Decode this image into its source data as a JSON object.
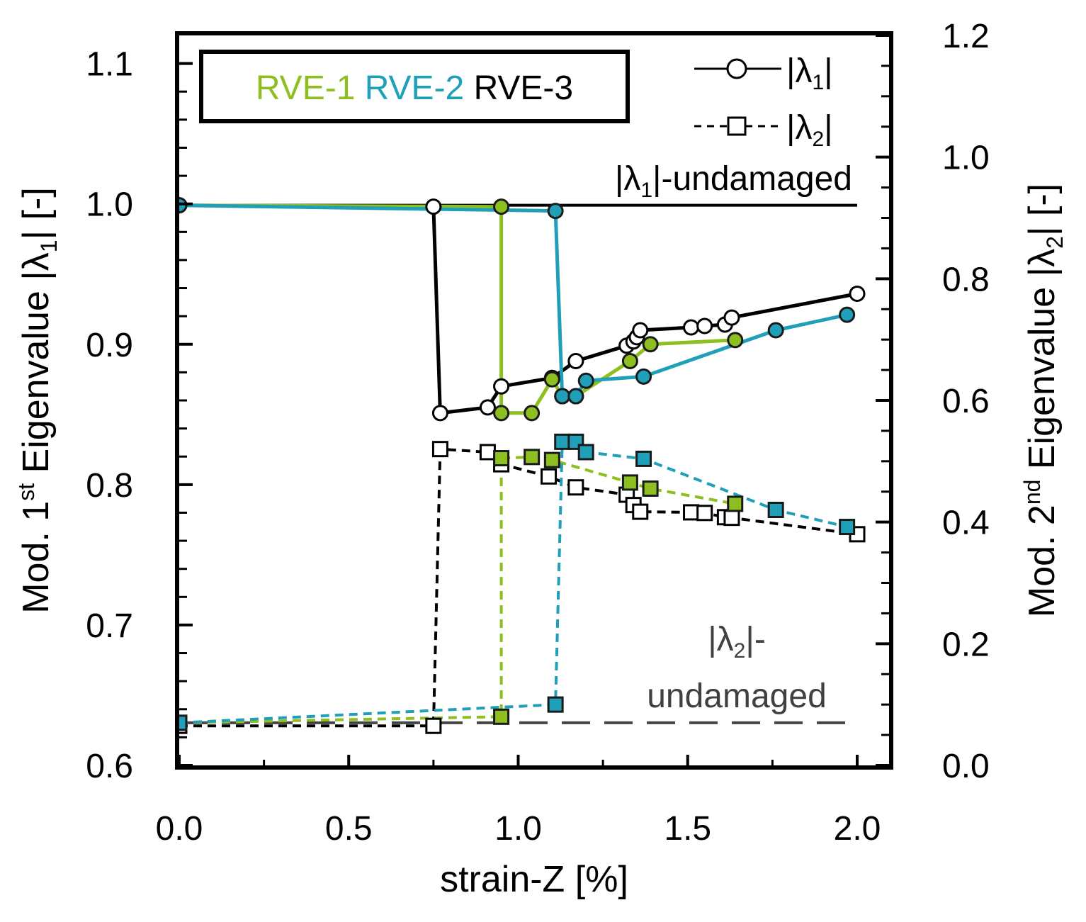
{
  "chart_data": {
    "type": "line",
    "x": {
      "label": "strain-Z [%]",
      "lim": [
        0.0,
        2.0
      ],
      "ticks": [
        "0.0",
        "0.5",
        "1.0",
        "1.5",
        "2.0"
      ],
      "tick_values": [
        0.0,
        0.5,
        1.0,
        1.5,
        2.0
      ]
    },
    "y_left": {
      "label_prefix": "Mod. 1",
      "label_sup": "st",
      "label_mid": " Eigenvalue  |λ",
      "label_sub": "1",
      "label_suffix": "|  [-]",
      "lim": [
        0.6,
        1.12
      ],
      "ticks": [
        "0.6",
        "0.7",
        "0.8",
        "0.9",
        "1.0",
        "1.1"
      ],
      "tick_values": [
        0.6,
        0.7,
        0.8,
        0.9,
        1.0,
        1.1
      ]
    },
    "y_right": {
      "label_prefix": "Mod. 2",
      "label_sup": "nd",
      "label_mid": " Eigenvalue  |λ",
      "label_sub": "2",
      "label_suffix": "| [-]",
      "lim": [
        0.0,
        1.2
      ],
      "ticks": [
        "0.0",
        "0.2",
        "0.4",
        "0.6",
        "0.8",
        "1.0",
        "1.2"
      ],
      "tick_values": [
        0.0,
        0.2,
        0.4,
        0.6,
        0.8,
        1.0,
        1.2
      ]
    },
    "legend_box": [
      {
        "text": "RVE-1",
        "color": "#8cbf1f"
      },
      {
        "text": "RVE-2",
        "color": "#1fa0b8"
      },
      {
        "text": "RVE-3",
        "color": "#000000"
      }
    ],
    "legend_markers": {
      "lambda1": {
        "text": "|λ",
        "sub": "1",
        "end": "|"
      },
      "lambda2": {
        "text": "|λ",
        "sub": "2",
        "end": "|"
      }
    },
    "annotations": {
      "lambda1_undamaged": {
        "text": "|λ",
        "sub": "1",
        "end": "|-undamaged",
        "value": 0.999
      },
      "lambda2_undamaged": {
        "line1_text": "|λ",
        "line1_sub": "2",
        "line1_end": "|-",
        "line2": "undamaged",
        "value": 0.07
      }
    },
    "colors": {
      "RVE-1": "#8cbf1f",
      "RVE-2": "#1fa0b8",
      "RVE-3": "#000000",
      "undamaged2": "#444444",
      "annotation2": "#404040"
    },
    "series": [
      {
        "name": "RVE-3 |λ1|",
        "rve": "RVE-3",
        "axis": "left",
        "style": "solid",
        "marker": "circle",
        "filled": false,
        "x": [
          0.0,
          0.75,
          0.77,
          0.91,
          0.95,
          1.1,
          1.17,
          1.32,
          1.34,
          1.35,
          1.36,
          1.51,
          1.55,
          1.61,
          1.63,
          2.0
        ],
        "y": [
          0.999,
          0.998,
          0.851,
          0.855,
          0.87,
          0.876,
          0.888,
          0.899,
          0.902,
          0.905,
          0.91,
          0.912,
          0.913,
          0.914,
          0.919,
          0.936
        ]
      },
      {
        "name": "RVE-1 |λ1|",
        "rve": "RVE-1",
        "axis": "left",
        "style": "solid",
        "marker": "circle",
        "filled": true,
        "x": [
          0.0,
          0.95,
          0.95,
          1.04,
          1.1,
          1.13,
          1.17,
          1.33,
          1.39,
          1.64
        ],
        "y": [
          0.999,
          0.998,
          0.851,
          0.851,
          0.875,
          0.863,
          0.863,
          0.888,
          0.9,
          0.903
        ]
      },
      {
        "name": "RVE-2 |λ1|",
        "rve": "RVE-2",
        "axis": "left",
        "style": "solid",
        "marker": "circle",
        "filled": true,
        "x": [
          0.0,
          1.11,
          1.13,
          1.17,
          1.2,
          1.37,
          1.76,
          1.97
        ],
        "y": [
          0.999,
          0.995,
          0.863,
          0.863,
          0.874,
          0.877,
          0.91,
          0.921
        ]
      },
      {
        "name": "RVE-3 |λ2|",
        "rve": "RVE-3",
        "axis": "right",
        "style": "dashed",
        "marker": "square",
        "filled": false,
        "x": [
          0.0,
          0.75,
          0.77,
          0.91,
          0.95,
          1.09,
          1.17,
          1.32,
          1.34,
          1.36,
          1.51,
          1.55,
          1.61,
          1.63,
          2.0
        ],
        "y": [
          0.065,
          0.065,
          0.52,
          0.515,
          0.495,
          0.475,
          0.457,
          0.445,
          0.428,
          0.417,
          0.416,
          0.415,
          0.408,
          0.407,
          0.38
        ]
      },
      {
        "name": "RVE-1 |λ2|",
        "rve": "RVE-1",
        "axis": "right",
        "style": "dashed",
        "marker": "square",
        "filled": true,
        "x": [
          0.0,
          0.95,
          0.95,
          1.04,
          1.1,
          1.33,
          1.39,
          1.64
        ],
        "y": [
          0.07,
          0.08,
          0.505,
          0.507,
          0.502,
          0.465,
          0.455,
          0.43
        ]
      },
      {
        "name": "RVE-2 |λ2|",
        "rve": "RVE-2",
        "axis": "right",
        "style": "dashed",
        "marker": "square",
        "filled": true,
        "x": [
          0.0,
          1.11,
          1.13,
          1.17,
          1.2,
          1.37,
          1.76,
          1.97
        ],
        "y": [
          0.07,
          0.1,
          0.532,
          0.532,
          0.515,
          0.504,
          0.42,
          0.392
        ]
      }
    ]
  }
}
